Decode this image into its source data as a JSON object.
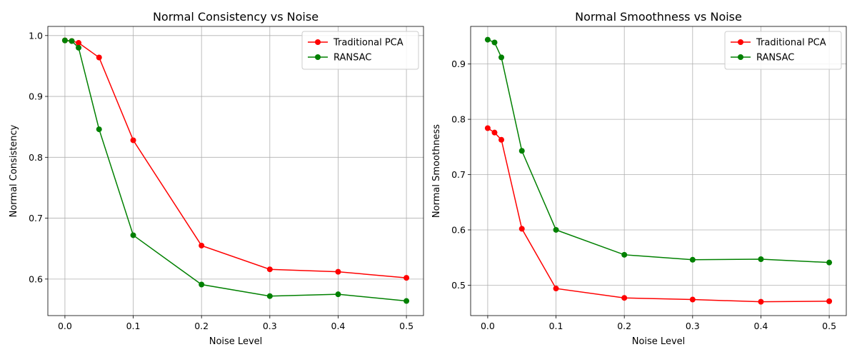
{
  "chart_data": [
    {
      "type": "line",
      "title": "Normal Consistency vs Noise",
      "xlabel": "Noise Level",
      "ylabel": "Normal Consistency",
      "xlim": [
        -0.025,
        0.525
      ],
      "ylim": [
        0.54,
        1.015
      ],
      "xticks": [
        0.0,
        0.1,
        0.2,
        0.3,
        0.4,
        0.5
      ],
      "xtick_labels": [
        "0.0",
        "0.1",
        "0.2",
        "0.3",
        "0.4",
        "0.5"
      ],
      "yticks": [
        0.6,
        0.7,
        0.8,
        0.9,
        1.0
      ],
      "ytick_labels": [
        "0.6",
        "0.7",
        "0.8",
        "0.9",
        "1.0"
      ],
      "grid": true,
      "legend_position": "top-right",
      "x": [
        0.0,
        0.01,
        0.02,
        0.05,
        0.1,
        0.2,
        0.3,
        0.4,
        0.5
      ],
      "series": [
        {
          "name": "Traditional PCA",
          "color": "#ff0000",
          "values": [
            0.992,
            0.991,
            0.988,
            0.964,
            0.828,
            0.655,
            0.616,
            0.612,
            0.602
          ]
        },
        {
          "name": "RANSAC",
          "color": "#008000",
          "values": [
            0.992,
            0.991,
            0.98,
            0.846,
            0.672,
            0.591,
            0.572,
            0.575,
            0.564
          ]
        }
      ]
    },
    {
      "type": "line",
      "title": "Normal Smoothness vs Noise",
      "xlabel": "Noise Level",
      "ylabel": "Normal Smoothness",
      "xlim": [
        -0.025,
        0.525
      ],
      "ylim": [
        0.445,
        0.968
      ],
      "xticks": [
        0.0,
        0.1,
        0.2,
        0.3,
        0.4,
        0.5
      ],
      "xtick_labels": [
        "0.0",
        "0.1",
        "0.2",
        "0.3",
        "0.4",
        "0.5"
      ],
      "yticks": [
        0.5,
        0.6,
        0.7,
        0.8,
        0.9
      ],
      "ytick_labels": [
        "0.5",
        "0.6",
        "0.7",
        "0.8",
        "0.9"
      ],
      "grid": true,
      "legend_position": "top-right",
      "x": [
        0.0,
        0.01,
        0.02,
        0.05,
        0.1,
        0.2,
        0.3,
        0.4,
        0.5
      ],
      "series": [
        {
          "name": "Traditional PCA",
          "color": "#ff0000",
          "values": [
            0.784,
            0.776,
            0.763,
            0.602,
            0.494,
            0.477,
            0.474,
            0.47,
            0.471
          ]
        },
        {
          "name": "RANSAC",
          "color": "#008000",
          "values": [
            0.944,
            0.939,
            0.912,
            0.743,
            0.6,
            0.555,
            0.546,
            0.547,
            0.541
          ]
        }
      ]
    }
  ]
}
